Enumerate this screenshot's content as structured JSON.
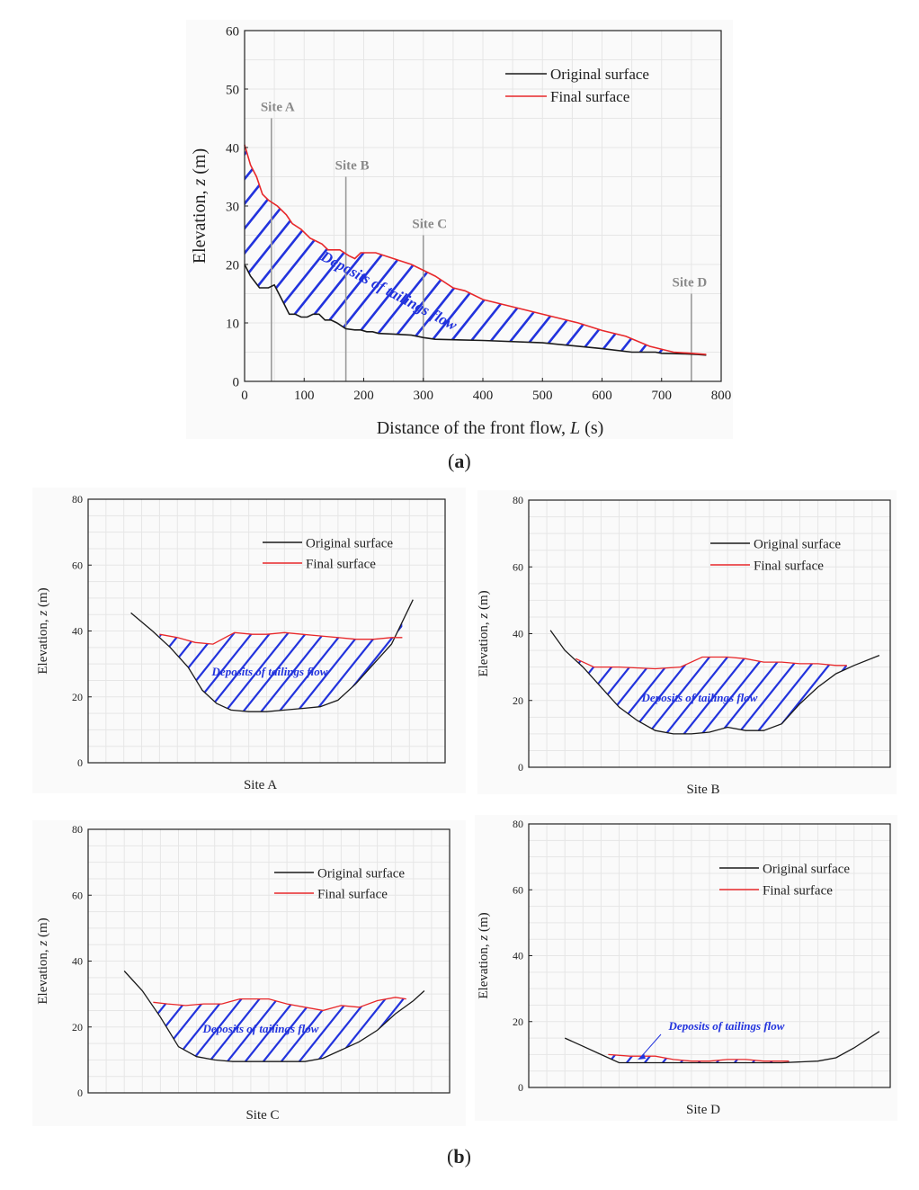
{
  "legend": {
    "original": "Original surface",
    "final": "Final surface"
  },
  "colors": {
    "original": "#1a1a1a",
    "final": "#e8282a",
    "hatch": "#2233dd",
    "site_line": "#9a9a9a",
    "site_text": "#8a8a8a",
    "grid": "#e6e6e6"
  },
  "deposit_label": "Deposits of tailings flow",
  "panels": {
    "a": {
      "open": "(",
      "letter": "a",
      "close": ")"
    },
    "b": {
      "open": "(",
      "letter": "b",
      "close": ")"
    }
  },
  "chart_data": [
    {
      "type": "line",
      "id": "a",
      "title": "",
      "xlabel": "Distance of the front flow, ",
      "xlabel_var": "L",
      "xlabel_unit": " (s)",
      "ylabel": "Elevation, ",
      "ylabel_var": "z",
      "ylabel_unit": " (m)",
      "xlim": [
        0,
        800
      ],
      "ylim": [
        0,
        60
      ],
      "xticks": [
        0,
        100,
        200,
        300,
        400,
        500,
        600,
        700,
        800
      ],
      "yticks": [
        0,
        10,
        20,
        30,
        40,
        50,
        60
      ],
      "legend_position": "top-right",
      "sites": [
        {
          "label": "Site A",
          "x": 45,
          "top": 45
        },
        {
          "label": "Site B",
          "x": 170,
          "top": 35
        },
        {
          "label": "Site C",
          "x": 300,
          "top": 25
        },
        {
          "label": "Site D",
          "x": 750,
          "top": 15
        }
      ],
      "series": [
        {
          "name": "Original surface",
          "x": [
            0,
            10,
            25,
            40,
            50,
            65,
            75,
            85,
            95,
            105,
            115,
            125,
            135,
            145,
            155,
            170,
            185,
            195,
            205,
            215,
            225,
            250,
            280,
            300,
            320,
            400,
            500,
            600,
            650,
            660,
            690,
            700,
            740,
            760,
            775
          ],
          "y": [
            20,
            18,
            16,
            16,
            16.5,
            13.5,
            11.5,
            11.5,
            11,
            11,
            11.5,
            11.5,
            10.5,
            10.5,
            10,
            9,
            8.8,
            8.8,
            8.5,
            8.5,
            8.2,
            8.1,
            7.9,
            7.5,
            7.2,
            7,
            6.6,
            5.6,
            5,
            5,
            5,
            4.8,
            4.7,
            4.6,
            4.5
          ]
        },
        {
          "name": "Final surface",
          "x": [
            0,
            10,
            20,
            30,
            40,
            55,
            70,
            80,
            95,
            110,
            120,
            130,
            140,
            160,
            175,
            185,
            195,
            220,
            250,
            280,
            300,
            320,
            350,
            370,
            400,
            440,
            480,
            520,
            560,
            600,
            640,
            680,
            720,
            750,
            775
          ],
          "y": [
            40.5,
            37,
            35,
            32,
            31,
            30,
            28.5,
            27,
            26,
            24.5,
            24,
            23.5,
            22.5,
            22.5,
            21.5,
            21,
            22,
            22,
            21,
            20,
            19,
            18,
            16,
            15.5,
            14,
            13,
            12,
            11,
            10,
            8.7,
            7.7,
            6,
            5,
            4.8,
            4.6
          ]
        }
      ],
      "annotation": "Deposits of tailings flow"
    },
    {
      "type": "line",
      "id": "site-a",
      "xlabel": "Site A",
      "ylabel": "Elevation, ",
      "ylabel_var": "z",
      "ylabel_unit": " (m)",
      "xlim": [
        0,
        100
      ],
      "ylim": [
        0,
        80
      ],
      "yticks": [
        0,
        20,
        40,
        60,
        80
      ],
      "legend_position": "top-right",
      "series": [
        {
          "name": "Original surface",
          "x": [
            12,
            18,
            23,
            28,
            32,
            36,
            40,
            45,
            50,
            55,
            60,
            65,
            70,
            75,
            80,
            85,
            91
          ],
          "y": [
            45.5,
            40,
            35,
            29,
            22,
            18,
            16,
            15.5,
            15.5,
            16,
            16.5,
            17,
            19,
            24,
            30,
            36,
            49.5
          ]
        },
        {
          "name": "Final surface",
          "x": [
            20,
            25,
            30,
            35,
            41,
            46,
            50,
            55,
            60,
            65,
            70,
            75,
            80,
            85,
            88
          ],
          "y": [
            39,
            38,
            36.5,
            36,
            39.5,
            39,
            39,
            39.5,
            39,
            38.5,
            38,
            37.5,
            37.5,
            38,
            38
          ]
        }
      ],
      "annotation": "Deposits of tailings flow"
    },
    {
      "type": "line",
      "id": "site-b",
      "xlabel": "Site B",
      "ylabel": "Elevation, ",
      "ylabel_var": "z",
      "ylabel_unit": " (m)",
      "xlim": [
        0,
        100
      ],
      "ylim": [
        0,
        80
      ],
      "yticks": [
        0,
        20,
        40,
        60,
        80
      ],
      "legend_position": "top-right",
      "series": [
        {
          "name": "Original surface",
          "x": [
            6,
            10,
            15,
            20,
            25,
            30,
            35,
            40,
            45,
            50,
            55,
            60,
            65,
            70,
            75,
            80,
            85,
            90,
            97
          ],
          "y": [
            41,
            35,
            30,
            24,
            18,
            14,
            11,
            10,
            10,
            10.5,
            12,
            11,
            11,
            13,
            19,
            24,
            28,
            30.5,
            33.5
          ]
        },
        {
          "name": "Final surface",
          "x": [
            13,
            18,
            25,
            35,
            42,
            48,
            55,
            60,
            65,
            70,
            75,
            80,
            85,
            88
          ],
          "y": [
            32.5,
            30,
            30,
            29.5,
            30,
            33,
            33,
            32.5,
            31.5,
            31.5,
            31,
            31,
            30.5,
            30.5
          ]
        }
      ],
      "annotation": "Deposits of tailings flow"
    },
    {
      "type": "line",
      "id": "site-c",
      "xlabel": "Site C",
      "ylabel": "Elevation, ",
      "ylabel_var": "z",
      "ylabel_unit": " (m)",
      "xlim": [
        0,
        100
      ],
      "ylim": [
        0,
        80
      ],
      "yticks": [
        0,
        20,
        40,
        60,
        80
      ],
      "legend_position": "top-right",
      "series": [
        {
          "name": "Original surface",
          "x": [
            10,
            15,
            20,
            25,
            30,
            35,
            40,
            50,
            60,
            65,
            70,
            75,
            80,
            85,
            90,
            93
          ],
          "y": [
            37,
            31,
            23,
            14,
            11,
            10,
            9.5,
            9.5,
            9.5,
            10.5,
            13,
            15.5,
            19,
            24,
            28,
            31
          ]
        },
        {
          "name": "Final surface",
          "x": [
            18,
            22,
            27,
            32,
            37,
            42,
            50,
            55,
            60,
            65,
            70,
            75,
            80,
            85,
            88
          ],
          "y": [
            27.5,
            27,
            26.5,
            27,
            27,
            28.5,
            28.5,
            27,
            26,
            25,
            26.5,
            26,
            28,
            29,
            28.5
          ]
        }
      ],
      "annotation": "Deposits of tailings flow"
    },
    {
      "type": "line",
      "id": "site-d",
      "xlabel": "Site D",
      "ylabel": "Elevation, ",
      "ylabel_var": "z",
      "ylabel_unit": " (m)",
      "xlim": [
        0,
        100
      ],
      "ylim": [
        0,
        80
      ],
      "yticks": [
        0,
        20,
        40,
        60,
        80
      ],
      "legend_position": "top-right",
      "series": [
        {
          "name": "Original surface",
          "x": [
            10,
            15,
            20,
            25,
            30,
            40,
            50,
            60,
            70,
            80,
            85,
            90,
            97
          ],
          "y": [
            15,
            12.5,
            10,
            7.5,
            7.5,
            7.5,
            7.5,
            7.5,
            7.5,
            8,
            9,
            12,
            17
          ]
        },
        {
          "name": "Final surface",
          "x": [
            22,
            28,
            35,
            40,
            45,
            50,
            55,
            60,
            65,
            72
          ],
          "y": [
            10,
            9.5,
            9.5,
            8.5,
            8,
            8,
            8.5,
            8.5,
            8,
            8
          ]
        }
      ],
      "annotation": "Deposits of tailings flow"
    }
  ]
}
